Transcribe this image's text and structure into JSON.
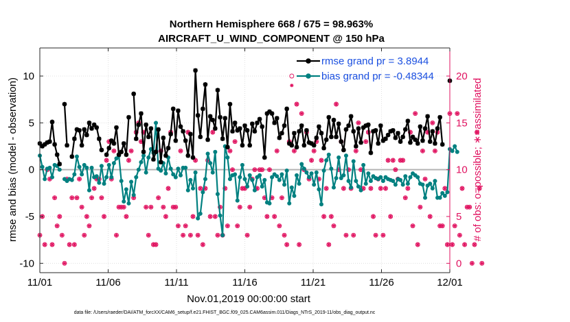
{
  "chart_data": {
    "type": "line",
    "title": "Northern Hemisphere 668 / 675 = 98.963%",
    "subtitle": "AIRCRAFT_U_WIND_COMPONENT @ 150 hPa",
    "xlabel": "Nov.01,2019 00:00:00 start",
    "ylabel": "rmse and bias (model - observation)",
    "y2label": "# of obs: o=possible; ∗=assimilated",
    "x_ticks": [
      "11/01",
      "11/06",
      "11/11",
      "11/16",
      "11/21",
      "11/26",
      "12/01"
    ],
    "x_range_days": [
      0,
      30
    ],
    "y_ticks": [
      "-10",
      "-5",
      "0",
      "5",
      "10"
    ],
    "y_range": [
      -11,
      13
    ],
    "y2_ticks": [
      "0",
      "5",
      "10",
      "15",
      "20"
    ],
    "y2_range": [
      -1,
      23
    ],
    "legend_position": "top-right",
    "footer": "data file: /Users/raeder/DAI/ATM_forcXX/CAM6_setup/f.e21.FHIST_BGC.f09_025.CAM6assim.011/Diags_NTrS_2019-11/obs_diag_output.nc",
    "colors": {
      "rmse": "#000000",
      "bias": "#008080",
      "obs": "#e0115f",
      "zero_line": "#b3b3b3",
      "legend_text": "#1a4fe0"
    },
    "series": [
      {
        "name": "rmse grand pr = 3.8944",
        "color": "#000000",
        "values": [
          2.8,
          2.5,
          2.7,
          2.9,
          3.0,
          5.1,
          2.7,
          1.6,
          0.6,
          null,
          7.0,
          2.6,
          null,
          1.4,
          3.3,
          4.3,
          4.2,
          2.6,
          4.3,
          3.7,
          5.0,
          4.4,
          4.8,
          4.5,
          3.3,
          2.1,
          null,
          1.6,
          2.3,
          3.1,
          2.8,
          4.5,
          1.6,
          1.9,
          2.8,
          1.6,
          5.6,
          null,
          8.1,
          3.3,
          4.8,
          6.0,
          1.9,
          4.8,
          3.5,
          4.4,
          1.1,
          1.9,
          4.3,
          0.8,
          3.4,
          1.5,
          2.3,
          3.8,
          6.5,
          3.1,
          6.3,
          4.6,
          4.1,
          3.1,
          1.5,
          3.8,
          1.3,
          10.6,
          5.8,
          3.5,
          6.5,
          9.1,
          3.2,
          5.7,
          5.3,
          4.4,
          8.5,
          5.6,
          3.3,
          5.5,
          2.4,
          7.0,
          4.1,
          5.0,
          4.2,
          4.4,
          2.6,
          4.7,
          4.2,
          2.6,
          4.9,
          4.1,
          5.0,
          5.4,
          4.6,
          1.3,
          6.0,
          6.2,
          6.0,
          5.0,
          5.5,
          3.4,
          3.9,
          4.7,
          6.5,
          2.8,
          2.6,
          3.9,
          2.4,
          4.1,
          4.7,
          2.6,
          4.2,
          2.9,
          2.8,
          2.6,
          3.4,
          4.6,
          3.9,
          2.3,
          3.2,
          5.6,
          3.5,
          5.3,
          3.5,
          4.9,
          3.0,
          2.1,
          4.3,
          4.7,
          5.7,
          4.1,
          2.5,
          4.4,
          2.9,
          4.5,
          4.7,
          4.8,
          1.8,
          4.1,
          4.2,
          2.8,
          4.7,
          3.1,
          3.3,
          3.7,
          4.1,
          4.2,
          3.4,
          3.9,
          3.0,
          3.5,
          4.3,
          5.2,
          2.9,
          3.5,
          3.2,
          2.8,
          4.6,
          3.1,
          4.4,
          5.7,
          3.0,
          4.1,
          2.8,
          4.4,
          5.6,
          2.7,
          null,
          null,
          9.5
        ]
      },
      {
        "name": "bias grand pr = -0.48344",
        "color": "#008080",
        "values": [
          1.5,
          0.3,
          -1.0,
          0.1,
          0.2,
          -0.8,
          0.5,
          0.4,
          0.0,
          null,
          -1.0,
          -1.2,
          -1.0,
          -1.1,
          -0.5,
          1.4,
          0.3,
          -0.5,
          0.5,
          0.2,
          -2.2,
          0.2,
          -0.8,
          -0.7,
          -1.4,
          0.4,
          -1.5,
          -0.8,
          0.5,
          -0.8,
          0.7,
          1.2,
          1.5,
          -1.2,
          -3.4,
          -2.1,
          -3.6,
          -1.3,
          -2.7,
          -0.8,
          0.0,
          0.8,
          1.5,
          -0.3,
          1.3,
          2.2,
          1.8,
          5.0,
          0.1,
          -0.1,
          0.7,
          -0.4,
          1.3,
          0.1,
          -0.5,
          -0.8,
          0.1,
          -0.6,
          0.2,
          0.2,
          -2.2,
          -1.1,
          -2.0,
          -0.3,
          -5.2,
          -4.7,
          -2.4,
          -1.0,
          1.7,
          0.7,
          -0.3,
          1.9,
          -2.6,
          -4.9,
          -7.0,
          2.5,
          1.3,
          -1.0,
          -0.6,
          -0.5,
          -3.3,
          -0.8,
          0.5,
          -1.0,
          -1.8,
          -0.6,
          -1.1,
          -2.2,
          -0.8,
          -0.6,
          -1.8,
          -1.1,
          -3.5,
          -3.6,
          -0.8,
          -0.5,
          -0.7,
          -1.1,
          -0.5,
          -1.6,
          -0.1,
          -3.6,
          -1.9,
          -2.8,
          -0.6,
          -1.5,
          0.6,
          0.1,
          -0.3,
          -0.8,
          -0.4,
          -1.6,
          -0.3,
          -2.1,
          -3.7,
          -0.1,
          1.0,
          1.6,
          0.1,
          -1.9,
          -0.9,
          1.3,
          -0.9,
          -0.6,
          1.5,
          -1.2,
          -1.9,
          0.9,
          -1.2,
          -1.8,
          -2.2,
          0.5,
          -1.5,
          -0.4,
          -1.2,
          -0.7,
          -0.9,
          -1.0,
          -0.8,
          -1.2,
          -0.8,
          -1.0,
          -1.1,
          -1.2,
          -1.6,
          -1.0,
          -1.1,
          -1.6,
          -0.7,
          -1.5,
          -0.8,
          -0.4,
          -0.6,
          -0.8,
          -1.5,
          -1.6,
          -3.0,
          -1.7,
          -1.5,
          -2.0,
          -1.2,
          -3.0,
          -3.0,
          -2.5,
          -2.8,
          -2.4,
          2.2,
          2.0,
          2.5,
          1.9
        ]
      },
      {
        "name": "# of obs possible",
        "color": "#e0115f",
        "values": [
          3,
          5,
          2,
          10,
          9,
          2,
          7,
          4,
          5,
          3,
          0,
          9,
          2,
          7,
          2,
          7,
          9,
          6,
          3,
          5,
          4,
          7,
          8,
          9,
          9,
          7,
          5,
          11,
          13,
          9,
          12,
          3,
          6,
          6,
          6,
          5,
          11,
          12,
          7,
          14,
          15,
          13,
          14,
          6,
          3,
          6,
          2,
          2,
          7,
          12,
          6,
          5,
          8,
          14,
          6,
          6,
          4,
          12,
          3,
          4,
          14,
          3,
          5,
          11,
          3,
          8,
          2,
          8,
          11,
          5,
          14,
          5,
          3,
          6,
          3,
          8,
          4,
          12,
          10,
          13,
          4,
          6,
          8,
          8,
          3,
          6,
          9,
          10,
          8,
          10,
          10,
          7,
          5,
          10,
          7,
          5,
          12,
          4,
          7,
          3,
          2,
          13,
          20,
          12,
          17,
          2,
          16,
          10,
          14,
          9,
          11,
          12,
          13,
          9,
          11,
          5,
          8,
          2,
          5,
          4,
          17,
          10,
          13,
          8,
          3,
          10,
          8,
          3,
          12,
          15,
          10,
          8,
          13,
          14,
          8,
          5,
          3,
          9,
          8,
          3,
          8,
          11,
          5,
          11,
          10,
          9,
          11,
          11,
          7,
          8,
          14,
          4,
          16,
          2,
          6,
          12,
          9,
          14,
          5,
          15,
          12,
          14,
          4,
          4,
          8,
          2,
          16,
          2,
          4,
          16,
          3,
          8,
          2,
          6,
          6,
          0,
          2,
          14,
          8,
          0
        ]
      },
      {
        "name": "# of obs assimilated",
        "color": "#e0115f",
        "values": [
          3,
          5,
          2,
          10,
          9,
          2,
          7,
          4,
          5,
          3,
          0,
          9,
          2,
          7,
          2,
          7,
          9,
          6,
          3,
          5,
          4,
          7,
          8,
          9,
          9,
          7,
          5,
          11,
          13,
          9,
          12,
          3,
          6,
          6,
          6,
          5,
          11,
          12,
          7,
          14,
          15,
          13,
          14,
          6,
          3,
          6,
          2,
          2,
          7,
          12,
          6,
          5,
          8,
          14,
          6,
          6,
          4,
          12,
          3,
          4,
          14,
          3,
          5,
          11,
          3,
          8,
          2,
          8,
          11,
          5,
          14,
          5,
          3,
          6,
          3,
          8,
          4,
          12,
          10,
          13,
          4,
          6,
          8,
          8,
          3,
          6,
          9,
          10,
          8,
          10,
          10,
          7,
          5,
          10,
          7,
          5,
          12,
          4,
          7,
          3,
          2,
          13,
          19,
          12,
          17,
          2,
          16,
          10,
          14,
          9,
          11,
          12,
          13,
          9,
          11,
          5,
          8,
          2,
          5,
          4,
          17,
          10,
          13,
          8,
          3,
          10,
          8,
          3,
          12,
          15,
          10,
          8,
          13,
          14,
          8,
          5,
          3,
          9,
          8,
          3,
          8,
          11,
          5,
          11,
          10,
          9,
          11,
          11,
          7,
          8,
          14,
          4,
          16,
          2,
          6,
          12,
          9,
          14,
          5,
          15,
          12,
          14,
          4,
          4,
          8,
          2,
          16,
          2,
          4,
          16,
          3,
          8,
          2,
          6,
          6,
          0,
          2,
          14,
          8,
          0
        ]
      }
    ]
  }
}
